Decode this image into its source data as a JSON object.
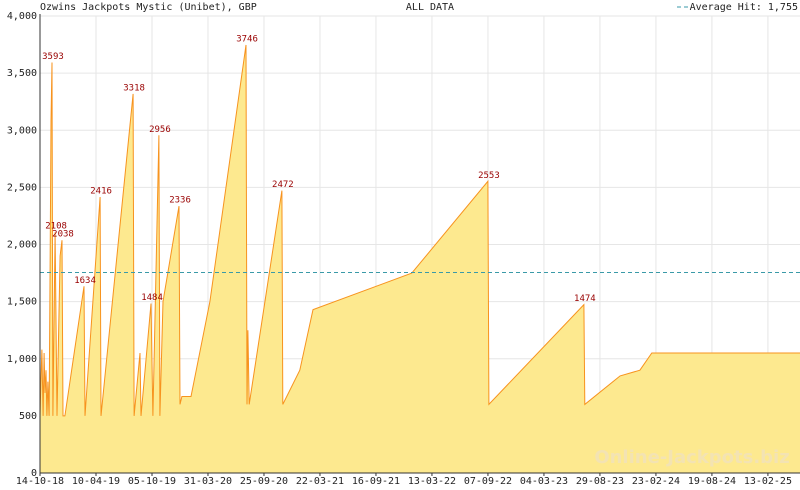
{
  "chart_data": {
    "type": "area",
    "title": "Ozwins Jackpots Mystic (Unibet), GBP",
    "subtitle": "ALL DATA",
    "watermark": "Online-Jackpots.biz",
    "fill_color": "#fde98f",
    "color": "#f7931e",
    "grid": true,
    "x": [
      0,
      3,
      6,
      10,
      13,
      16,
      19,
      22,
      25,
      29,
      32,
      35,
      38,
      41,
      48,
      54,
      64,
      70,
      73,
      79,
      140,
      143,
      191,
      194,
      296,
      299,
      318,
      321,
      353,
      359,
      378,
      381,
      391,
      442,
      445,
      451,
      480,
      540,
      655,
      658,
      661,
      665,
      769,
      772,
      826,
      868,
      1182,
      1424,
      1427,
      1729,
      1732,
      1844,
      1907,
      1945,
      2416
    ],
    "values": [
      500,
      800,
      1080,
      500,
      1050,
      700,
      900,
      500,
      800,
      500,
      1800,
      3080,
      3593,
      500,
      2108,
      500,
      1900,
      2038,
      500,
      500,
      1634,
      500,
      2416,
      500,
      3318,
      500,
      1050,
      500,
      1484,
      500,
      2956,
      500,
      1500,
      2336,
      600,
      670,
      670,
      1500,
      3746,
      600,
      1250,
      600,
      2472,
      600,
      900,
      1430,
      1750,
      2553,
      600,
      1474,
      600,
      850,
      900,
      1050,
      1050
    ],
    "peaks": [
      {
        "x": 38,
        "value": 3593
      },
      {
        "x": 48,
        "value": 2108
      },
      {
        "x": 70,
        "value": 2038
      },
      {
        "x": 140,
        "value": 1634
      },
      {
        "x": 191,
        "value": 2416
      },
      {
        "x": 296,
        "value": 3318
      },
      {
        "x": 353,
        "value": 1484
      },
      {
        "x": 378,
        "value": 2956
      },
      {
        "x": 442,
        "value": 2336
      },
      {
        "x": 655,
        "value": 3746
      },
      {
        "x": 769,
        "value": 2472
      },
      {
        "x": 1424,
        "value": 2553
      },
      {
        "x": 1729,
        "value": 1474
      }
    ],
    "average": {
      "value": 1755,
      "label": "Average Hit: 1,755",
      "color": "#3a9aa8"
    },
    "xlim": [
      0,
      2416
    ],
    "xticks": [
      {
        "value": 0,
        "label": "14-10-18"
      },
      {
        "value": 178,
        "label": "10-04-19"
      },
      {
        "value": 356,
        "label": "05-10-19"
      },
      {
        "value": 534,
        "label": "31-03-20"
      },
      {
        "value": 712,
        "label": "25-09-20"
      },
      {
        "value": 890,
        "label": "22-03-21"
      },
      {
        "value": 1068,
        "label": "16-09-21"
      },
      {
        "value": 1246,
        "label": "13-03-22"
      },
      {
        "value": 1424,
        "label": "07-09-22"
      },
      {
        "value": 1602,
        "label": "04-03-23"
      },
      {
        "value": 1780,
        "label": "29-08-23"
      },
      {
        "value": 1958,
        "label": "23-02-24"
      },
      {
        "value": 2136,
        "label": "19-08-24"
      },
      {
        "value": 2314,
        "label": "13-02-25"
      }
    ],
    "ylim": [
      0,
      4000
    ],
    "yticks": [
      0,
      500,
      {
        "value": 1000,
        "label": "1,000"
      },
      {
        "value": 1500,
        "label": "1,500"
      },
      {
        "value": 2000,
        "label": "2,000"
      },
      {
        "value": 2500,
        "label": "2,500"
      },
      {
        "value": 3000,
        "label": "3,000"
      },
      {
        "value": 3500,
        "label": "3,500"
      },
      {
        "value": 4000,
        "label": "4,000"
      }
    ]
  }
}
